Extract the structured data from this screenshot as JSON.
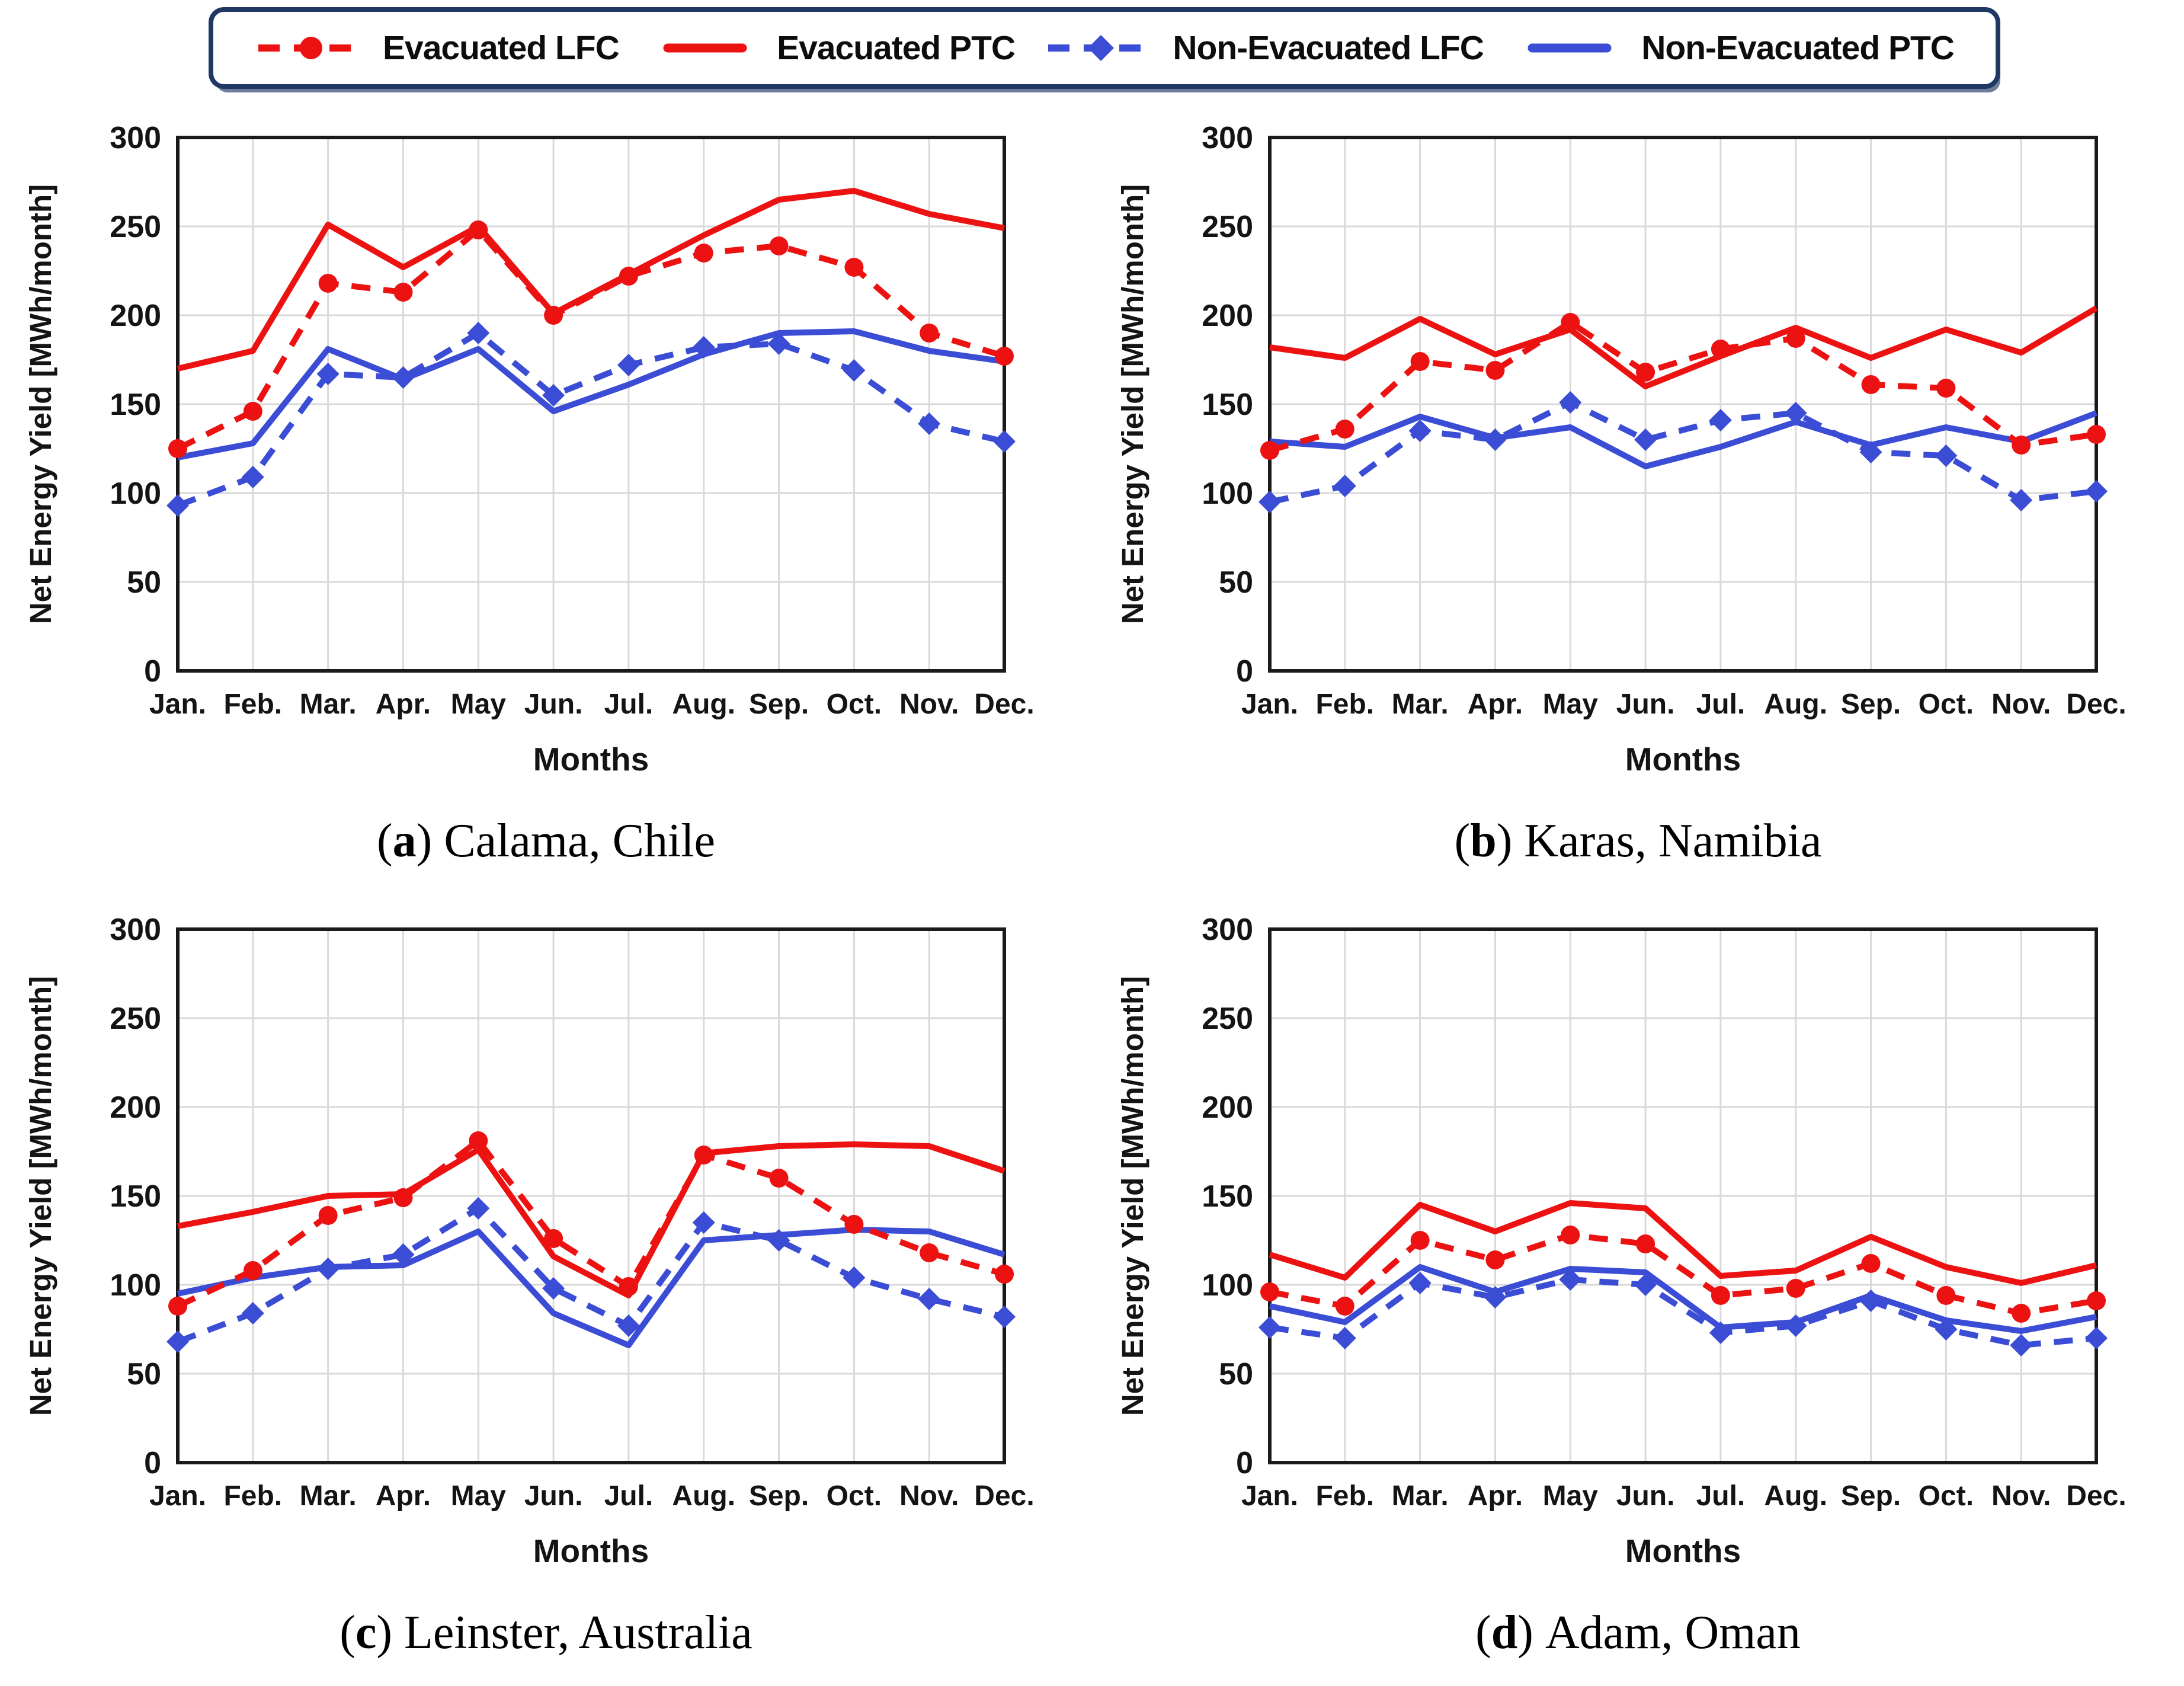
{
  "page": {
    "background": "#ffffff"
  },
  "legend": {
    "border_color": "#1F3864",
    "items": [
      {
        "label": "Evacuated LFC",
        "color": "#EC1212",
        "line_style": "dashed",
        "marker": "circle"
      },
      {
        "label": "Evacuated PTC",
        "color": "#EC1212",
        "line_style": "solid",
        "marker": "none"
      },
      {
        "label": "Non-Evacuated LFC",
        "color": "#3B4CD5",
        "line_style": "dashed",
        "marker": "diamond"
      },
      {
        "label": "Non-Evacuated PTC",
        "color": "#3B4CD5",
        "line_style": "solid",
        "marker": "none"
      }
    ]
  },
  "axes": {
    "x_label": "Months",
    "y_label": "Net Energy Yield [MWh/month]",
    "ylim": [
      0,
      300
    ],
    "ytick_step": 50,
    "grid": true,
    "gridline_color": "#D9D9D9",
    "border_color": "#1A1A1A"
  },
  "chart_data": [
    {
      "type": "line",
      "panel": "a",
      "caption": {
        "open": "(",
        "letter": "a",
        "close": ")",
        "location": "Calama, Chile"
      },
      "x": [
        "Jan.",
        "Feb.",
        "Mar.",
        "Apr.",
        "May",
        "Jun.",
        "Jul.",
        "Aug.",
        "Sep.",
        "Oct.",
        "Nov.",
        "Dec."
      ],
      "xlabel": "Months",
      "ylabel": "Net Energy Yield [MWh/month]",
      "ylim": [
        0,
        300
      ],
      "legend_position": "top",
      "series": [
        {
          "name": "Evacuated PTC",
          "color": "#EC1212",
          "style": "solid",
          "marker": "none",
          "values": [
            170,
            180,
            251,
            227,
            250,
            201,
            223,
            245,
            265,
            270,
            257,
            249
          ]
        },
        {
          "name": "Non-Evacuated PTC",
          "color": "#3B4CD5",
          "style": "solid",
          "marker": "none",
          "values": [
            120,
            128,
            181,
            164,
            181,
            146,
            161,
            178,
            190,
            191,
            180,
            174
          ]
        },
        {
          "name": "Evacuated LFC",
          "color": "#EC1212",
          "style": "dashed",
          "marker": "circle",
          "values": [
            125,
            146,
            218,
            213,
            248,
            200,
            222,
            235,
            239,
            227,
            190,
            177
          ]
        },
        {
          "name": "Non-Evacuated LFC",
          "color": "#3B4CD5",
          "style": "dashed",
          "marker": "diamond",
          "values": [
            93,
            109,
            167,
            165,
            190,
            155,
            172,
            182,
            184,
            169,
            139,
            129
          ]
        }
      ]
    },
    {
      "type": "line",
      "panel": "b",
      "caption": {
        "open": "(",
        "letter": "b",
        "close": ")",
        "location": "Karas, Namibia"
      },
      "x": [
        "Jan.",
        "Feb.",
        "Mar.",
        "Apr.",
        "May",
        "Jun.",
        "Jul.",
        "Aug.",
        "Sep.",
        "Oct.",
        "Nov.",
        "Dec."
      ],
      "xlabel": "Months",
      "ylabel": "Net Energy Yield [MWh/month]",
      "ylim": [
        0,
        300
      ],
      "legend_position": "top",
      "series": [
        {
          "name": "Evacuated PTC",
          "color": "#EC1212",
          "style": "solid",
          "marker": "none",
          "values": [
            182,
            176,
            198,
            178,
            192,
            160,
            177,
            193,
            176,
            192,
            179,
            204
          ]
        },
        {
          "name": "Non-Evacuated PTC",
          "color": "#3B4CD5",
          "style": "solid",
          "marker": "none",
          "values": [
            129,
            126,
            143,
            131,
            137,
            115,
            126,
            140,
            127,
            137,
            129,
            145
          ]
        },
        {
          "name": "Evacuated LFC",
          "color": "#EC1212",
          "style": "dashed",
          "marker": "circle",
          "values": [
            124,
            136,
            174,
            169,
            196,
            168,
            181,
            187,
            161,
            159,
            127,
            133
          ]
        },
        {
          "name": "Non-Evacuated LFC",
          "color": "#3B4CD5",
          "style": "dashed",
          "marker": "diamond",
          "values": [
            95,
            104,
            135,
            130,
            151,
            130,
            141,
            145,
            123,
            121,
            96,
            101
          ]
        }
      ]
    },
    {
      "type": "line",
      "panel": "c",
      "caption": {
        "open": "(",
        "letter": "c",
        "close": ")",
        "location": "Leinster, Australia"
      },
      "x": [
        "Jan.",
        "Feb.",
        "Mar.",
        "Apr.",
        "May",
        "Jun.",
        "Jul.",
        "Aug.",
        "Sep.",
        "Oct.",
        "Nov.",
        "Dec."
      ],
      "xlabel": "Months",
      "ylabel": "Net Energy Yield [MWh/month]",
      "ylim": [
        0,
        300
      ],
      "legend_position": "top",
      "series": [
        {
          "name": "Evacuated PTC",
          "color": "#EC1212",
          "style": "solid",
          "marker": "none",
          "values": [
            133,
            141,
            150,
            151,
            176,
            116,
            94,
            174,
            178,
            179,
            178,
            164
          ]
        },
        {
          "name": "Non-Evacuated PTC",
          "color": "#3B4CD5",
          "style": "solid",
          "marker": "none",
          "values": [
            95,
            104,
            110,
            111,
            130,
            84,
            66,
            125,
            128,
            131,
            130,
            117
          ]
        },
        {
          "name": "Evacuated LFC",
          "color": "#EC1212",
          "style": "dashed",
          "marker": "circle",
          "values": [
            88,
            108,
            139,
            149,
            181,
            126,
            99,
            173,
            160,
            134,
            118,
            106
          ]
        },
        {
          "name": "Non-Evacuated LFC",
          "color": "#3B4CD5",
          "style": "dashed",
          "marker": "diamond",
          "values": [
            68,
            84,
            109,
            117,
            143,
            98,
            77,
            135,
            125,
            104,
            92,
            82
          ]
        }
      ]
    },
    {
      "type": "line",
      "panel": "d",
      "caption": {
        "open": "(",
        "letter": "d",
        "close": ")",
        "location": "Adam, Oman"
      },
      "x": [
        "Jan.",
        "Feb.",
        "Mar.",
        "Apr.",
        "May",
        "Jun.",
        "Jul.",
        "Aug.",
        "Sep.",
        "Oct.",
        "Nov.",
        "Dec."
      ],
      "xlabel": "Months",
      "ylabel": "Net Energy Yield [MWh/month]",
      "ylim": [
        0,
        300
      ],
      "legend_position": "top",
      "series": [
        {
          "name": "Evacuated PTC",
          "color": "#EC1212",
          "style": "solid",
          "marker": "none",
          "values": [
            117,
            104,
            145,
            130,
            146,
            143,
            105,
            108,
            127,
            110,
            101,
            111
          ]
        },
        {
          "name": "Non-Evacuated PTC",
          "color": "#3B4CD5",
          "style": "solid",
          "marker": "none",
          "values": [
            88,
            79,
            110,
            96,
            109,
            107,
            76,
            79,
            94,
            80,
            74,
            82
          ]
        },
        {
          "name": "Evacuated LFC",
          "color": "#EC1212",
          "style": "dashed",
          "marker": "circle",
          "values": [
            96,
            88,
            125,
            114,
            128,
            123,
            94,
            98,
            112,
            94,
            84,
            91
          ]
        },
        {
          "name": "Non-Evacuated LFC",
          "color": "#3B4CD5",
          "style": "dashed",
          "marker": "diamond",
          "values": [
            76,
            70,
            101,
            93,
            103,
            100,
            73,
            77,
            91,
            75,
            66,
            70
          ]
        }
      ]
    }
  ]
}
